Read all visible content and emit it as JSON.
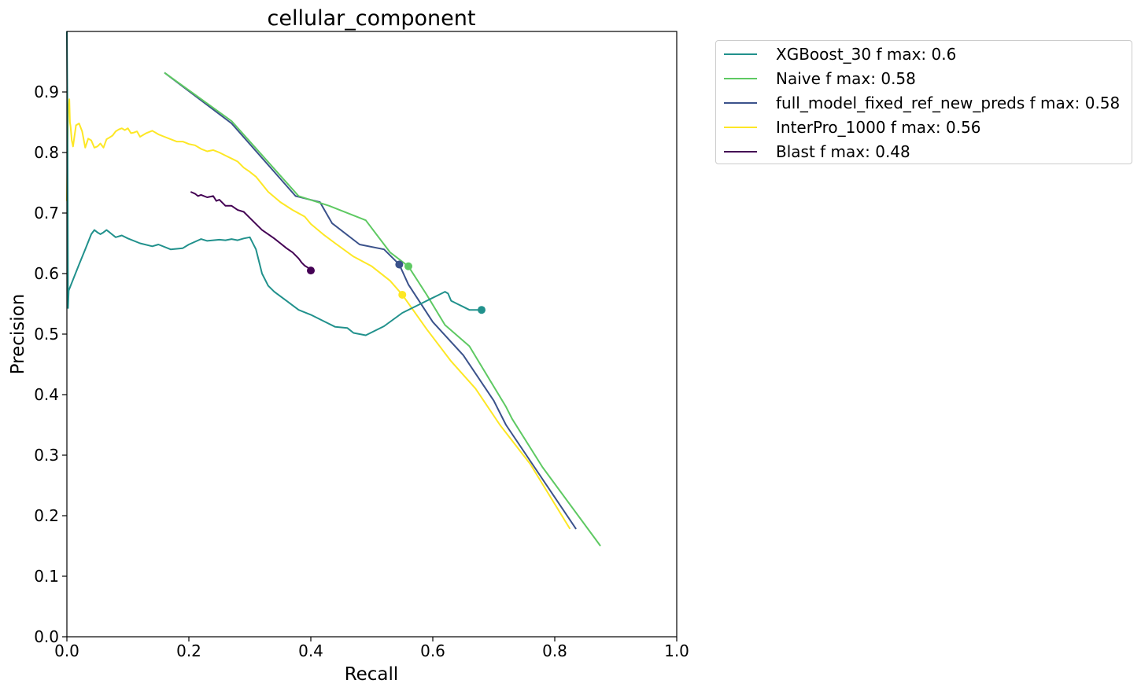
{
  "chart_data": {
    "type": "line",
    "title": "cellular_component",
    "xlabel": "Recall",
    "ylabel": "Precision",
    "xlim": [
      0,
      1
    ],
    "ylim": [
      0,
      1
    ],
    "xticks": [
      "0.0",
      "0.2",
      "0.4",
      "0.6",
      "0.8",
      "1.0"
    ],
    "yticks": [
      "0.0",
      "0.1",
      "0.2",
      "0.3",
      "0.4",
      "0.5",
      "0.6",
      "0.7",
      "0.8",
      "0.9"
    ],
    "grid": false,
    "legend_position": "outside-top-right",
    "series": [
      {
        "name": "XGBoost_30 f max: 0.6",
        "color": "#21918c",
        "x": [
          0.0,
          0.001,
          0.002,
          0.003,
          0.01,
          0.02,
          0.03,
          0.04,
          0.045,
          0.05,
          0.055,
          0.06,
          0.065,
          0.07,
          0.08,
          0.09,
          0.1,
          0.12,
          0.14,
          0.15,
          0.17,
          0.19,
          0.2,
          0.22,
          0.23,
          0.24,
          0.25,
          0.26,
          0.27,
          0.28,
          0.29,
          0.3,
          0.31,
          0.32,
          0.33,
          0.34,
          0.36,
          0.38,
          0.4,
          0.42,
          0.44,
          0.46,
          0.47,
          0.49,
          0.52,
          0.55,
          0.58,
          0.6,
          0.61,
          0.62,
          0.625,
          0.63,
          0.64,
          0.65,
          0.66,
          0.67,
          0.68
        ],
        "y": [
          1.0,
          0.86,
          0.543,
          0.572,
          0.59,
          0.615,
          0.64,
          0.665,
          0.672,
          0.668,
          0.665,
          0.668,
          0.672,
          0.668,
          0.66,
          0.663,
          0.658,
          0.65,
          0.645,
          0.648,
          0.64,
          0.642,
          0.648,
          0.657,
          0.654,
          0.655,
          0.656,
          0.655,
          0.657,
          0.655,
          0.658,
          0.66,
          0.64,
          0.6,
          0.58,
          0.57,
          0.555,
          0.54,
          0.532,
          0.522,
          0.512,
          0.51,
          0.502,
          0.498,
          0.513,
          0.535,
          0.55,
          0.56,
          0.565,
          0.57,
          0.567,
          0.555,
          0.55,
          0.545,
          0.54,
          0.54,
          0.54
        ],
        "marker": {
          "x": 0.68,
          "y": 0.54
        }
      },
      {
        "name": "Naive f max: 0.58",
        "color": "#5ec962",
        "x": [
          0.16,
          0.27,
          0.38,
          0.43,
          0.49,
          0.53,
          0.56,
          0.59,
          0.62,
          0.66,
          0.72,
          0.73,
          0.78,
          0.875
        ],
        "y": [
          0.932,
          0.852,
          0.728,
          0.712,
          0.688,
          0.635,
          0.612,
          0.565,
          0.515,
          0.48,
          0.38,
          0.36,
          0.28,
          0.15
        ],
        "marker": {
          "x": 0.56,
          "y": 0.612
        }
      },
      {
        "name": "full_model_fixed_ref_new_preds f max: 0.58",
        "color": "#3b528b",
        "x": [
          0.16,
          0.27,
          0.375,
          0.415,
          0.435,
          0.48,
          0.52,
          0.545,
          0.56,
          0.6,
          0.65,
          0.7,
          0.72,
          0.835
        ],
        "y": [
          0.932,
          0.848,
          0.728,
          0.718,
          0.683,
          0.648,
          0.64,
          0.615,
          0.582,
          0.52,
          0.465,
          0.39,
          0.35,
          0.178
        ],
        "marker": {
          "x": 0.545,
          "y": 0.615
        }
      },
      {
        "name": "InterPro_1000 f max: 0.56",
        "color": "#fde725",
        "x": [
          0.0,
          0.002,
          0.004,
          0.005,
          0.006,
          0.008,
          0.01,
          0.015,
          0.02,
          0.025,
          0.03,
          0.035,
          0.04,
          0.045,
          0.05,
          0.055,
          0.06,
          0.065,
          0.07,
          0.075,
          0.08,
          0.085,
          0.09,
          0.095,
          0.1,
          0.105,
          0.11,
          0.115,
          0.12,
          0.13,
          0.14,
          0.15,
          0.16,
          0.17,
          0.18,
          0.19,
          0.2,
          0.21,
          0.22,
          0.23,
          0.24,
          0.25,
          0.26,
          0.27,
          0.28,
          0.29,
          0.3,
          0.31,
          0.33,
          0.35,
          0.37,
          0.39,
          0.4,
          0.42,
          0.44,
          0.47,
          0.5,
          0.53,
          0.55,
          0.59,
          0.63,
          0.67,
          0.71,
          0.76,
          0.825
        ],
        "y": [
          0.72,
          0.865,
          0.888,
          0.85,
          0.843,
          0.82,
          0.81,
          0.845,
          0.848,
          0.835,
          0.808,
          0.823,
          0.82,
          0.808,
          0.81,
          0.815,
          0.808,
          0.822,
          0.825,
          0.828,
          0.835,
          0.838,
          0.84,
          0.837,
          0.84,
          0.832,
          0.833,
          0.835,
          0.826,
          0.832,
          0.836,
          0.83,
          0.826,
          0.822,
          0.818,
          0.818,
          0.814,
          0.812,
          0.806,
          0.802,
          0.804,
          0.8,
          0.795,
          0.79,
          0.785,
          0.775,
          0.768,
          0.76,
          0.735,
          0.718,
          0.705,
          0.694,
          0.682,
          0.665,
          0.65,
          0.628,
          0.612,
          0.588,
          0.565,
          0.508,
          0.455,
          0.41,
          0.35,
          0.285,
          0.178
        ],
        "marker": {
          "x": 0.55,
          "y": 0.565
        }
      },
      {
        "name": "Blast f max: 0.48",
        "color": "#440154",
        "x": [
          0.203,
          0.21,
          0.215,
          0.22,
          0.23,
          0.24,
          0.245,
          0.25,
          0.26,
          0.27,
          0.28,
          0.29,
          0.3,
          0.31,
          0.32,
          0.33,
          0.34,
          0.35,
          0.36,
          0.37,
          0.38,
          0.385,
          0.39,
          0.395,
          0.4
        ],
        "y": [
          0.735,
          0.732,
          0.728,
          0.73,
          0.726,
          0.728,
          0.72,
          0.722,
          0.712,
          0.712,
          0.705,
          0.702,
          0.692,
          0.682,
          0.672,
          0.665,
          0.658,
          0.65,
          0.642,
          0.635,
          0.625,
          0.618,
          0.613,
          0.61,
          0.605
        ],
        "marker": {
          "x": 0.4,
          "y": 0.605
        }
      }
    ]
  }
}
